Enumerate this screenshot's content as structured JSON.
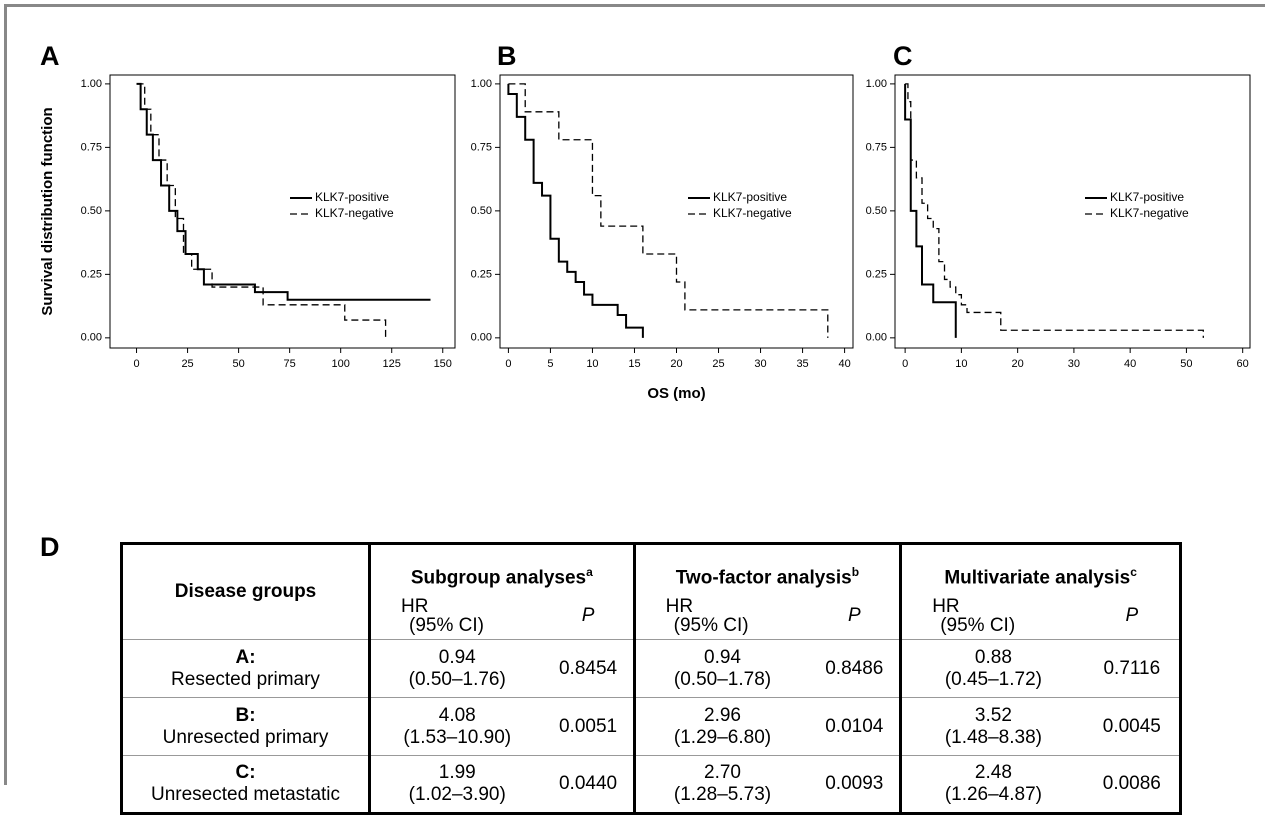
{
  "chart_data": [
    {
      "type": "step",
      "panel": "A",
      "ylabel": "Survival distribution function",
      "legend": "right",
      "xlim": [
        -13,
        156
      ],
      "xticks": [
        0,
        25,
        50,
        75,
        100,
        125,
        150
      ],
      "ylim": [
        -0.04,
        1.035
      ],
      "yticks": [
        {
          "value": 0,
          "label": "0.00"
        },
        {
          "value": 0.25,
          "label": "0.25"
        },
        {
          "value": 0.5,
          "label": "0.50"
        },
        {
          "value": 0.75,
          "label": "0.75"
        },
        {
          "value": 1,
          "label": "1.00"
        }
      ],
      "series": [
        {
          "name": "KLK7-positive",
          "color": "#000000",
          "line_style": "solid",
          "x": [
            0,
            2,
            2,
            5,
            5,
            8,
            8,
            12,
            12,
            16,
            16,
            20,
            20,
            24,
            24,
            30,
            30,
            33,
            33,
            58,
            58,
            74,
            74,
            144
          ],
          "values": [
            1,
            1,
            0.9,
            0.9,
            0.8,
            0.8,
            0.7,
            0.7,
            0.6,
            0.6,
            0.5,
            0.5,
            0.42,
            0.42,
            0.33,
            0.33,
            0.27,
            0.27,
            0.21,
            0.21,
            0.18,
            0.18,
            0.15,
            0.15
          ]
        },
        {
          "name": "KLK7-negative",
          "color": "#000000",
          "line_style": "dashed",
          "x": [
            0,
            4,
            4,
            7,
            7,
            11,
            11,
            15,
            15,
            19,
            19,
            23,
            23,
            27,
            27,
            37,
            37,
            62,
            62,
            102,
            102,
            122,
            122
          ],
          "values": [
            1,
            1,
            0.9,
            0.9,
            0.8,
            0.8,
            0.7,
            0.7,
            0.6,
            0.6,
            0.47,
            0.47,
            0.33,
            0.33,
            0.27,
            0.27,
            0.2,
            0.2,
            0.13,
            0.13,
            0.07,
            0.07,
            0
          ]
        }
      ]
    },
    {
      "type": "step",
      "panel": "B",
      "xlabel": "OS (mo)",
      "legend": "right",
      "xlim": [
        -1,
        41
      ],
      "xticks": [
        0,
        5,
        10,
        15,
        20,
        25,
        30,
        35,
        40
      ],
      "ylim": [
        -0.04,
        1.035
      ],
      "yticks": [
        {
          "value": 0,
          "label": "0.00"
        },
        {
          "value": 0.25,
          "label": "0.25"
        },
        {
          "value": 0.5,
          "label": "0.50"
        },
        {
          "value": 0.75,
          "label": "0.75"
        },
        {
          "value": 1,
          "label": "1.00"
        }
      ],
      "series": [
        {
          "name": "KLK7-positive",
          "color": "#000000",
          "line_style": "solid",
          "x": [
            0,
            0,
            1,
            1,
            2,
            2,
            3,
            3,
            4,
            4,
            5,
            5,
            6,
            6,
            7,
            7,
            8,
            8,
            9,
            9,
            10,
            10,
            13,
            13,
            14,
            14,
            16,
            16
          ],
          "values": [
            1,
            0.96,
            0.96,
            0.87,
            0.87,
            0.78,
            0.78,
            0.61,
            0.61,
            0.56,
            0.56,
            0.39,
            0.39,
            0.3,
            0.3,
            0.26,
            0.26,
            0.22,
            0.22,
            0.17,
            0.17,
            0.13,
            0.13,
            0.09,
            0.09,
            0.04,
            0.04,
            0
          ]
        },
        {
          "name": "KLK7-negative",
          "color": "#000000",
          "line_style": "dashed",
          "x": [
            0,
            2,
            2,
            6,
            6,
            10,
            10,
            11,
            11,
            16,
            16,
            20,
            20,
            21,
            21,
            38,
            38
          ],
          "values": [
            1,
            1,
            0.89,
            0.89,
            0.78,
            0.78,
            0.56,
            0.56,
            0.44,
            0.44,
            0.33,
            0.33,
            0.22,
            0.22,
            0.11,
            0.11,
            0
          ]
        }
      ]
    },
    {
      "type": "step",
      "panel": "C",
      "legend": "right",
      "xlim": [
        -1.8,
        61.3
      ],
      "xticks": [
        0,
        10,
        20,
        30,
        40,
        50,
        60
      ],
      "ylim": [
        -0.04,
        1.035
      ],
      "yticks": [
        {
          "value": 0,
          "label": "0.00"
        },
        {
          "value": 0.25,
          "label": "0.25"
        },
        {
          "value": 0.5,
          "label": "0.50"
        },
        {
          "value": 0.75,
          "label": "0.75"
        },
        {
          "value": 1,
          "label": "1.00"
        }
      ],
      "series": [
        {
          "name": "KLK7-positive",
          "color": "#000000",
          "line_style": "solid",
          "x": [
            0,
            0,
            1,
            1,
            2,
            2,
            3,
            3,
            5,
            5,
            9,
            9
          ],
          "values": [
            1,
            0.86,
            0.86,
            0.5,
            0.5,
            0.36,
            0.36,
            0.21,
            0.21,
            0.14,
            0.14,
            0
          ]
        },
        {
          "name": "KLK7-negative",
          "color": "#000000",
          "line_style": "dashed",
          "x": [
            0,
            0.5,
            0.5,
            1,
            1,
            2,
            2,
            3,
            3,
            4,
            4,
            5,
            5,
            6,
            6,
            7,
            7,
            8,
            8,
            9,
            9,
            10,
            10,
            11,
            11,
            17,
            17,
            53,
            53
          ],
          "values": [
            1,
            1,
            0.93,
            0.93,
            0.7,
            0.7,
            0.63,
            0.63,
            0.53,
            0.53,
            0.47,
            0.47,
            0.43,
            0.43,
            0.3,
            0.3,
            0.23,
            0.23,
            0.2,
            0.2,
            0.17,
            0.17,
            0.13,
            0.13,
            0.1,
            0.1,
            0.03,
            0.03,
            0
          ]
        }
      ]
    }
  ],
  "table": {
    "panel": "D",
    "row_header": "Disease groups",
    "columns": [
      {
        "title": "Subgroup analyses",
        "note": "a"
      },
      {
        "title": "Two-factor analysis",
        "note": "b"
      },
      {
        "title": "Multivariate analysis",
        "note": "c"
      }
    ],
    "hr_header": [
      "HR",
      "(95% CI)"
    ],
    "p_header": "P",
    "rows": [
      {
        "group": "A:",
        "name": "Resected primary",
        "cells": [
          [
            "0.94",
            "(0.50–1.76)",
            "0.8454"
          ],
          [
            "0.94",
            "(0.50–1.78)",
            "0.8486"
          ],
          [
            "0.88",
            "(0.45–1.72)",
            "0.7116"
          ]
        ]
      },
      {
        "group": "B:",
        "name": "Unresected primary",
        "cells": [
          [
            "4.08",
            "(1.53–10.90)",
            "0.0051"
          ],
          [
            "2.96",
            "(1.29–6.80)",
            "0.0104"
          ],
          [
            "3.52",
            "(1.48–8.38)",
            "0.0045"
          ]
        ]
      },
      {
        "group": "C:",
        "name": "Unresected metastatic",
        "cells": [
          [
            "1.99",
            "(1.02–3.90)",
            "0.0440"
          ],
          [
            "2.70",
            "(1.28–5.73)",
            "0.0093"
          ],
          [
            "2.48",
            "(1.26–4.87)",
            "0.0086"
          ]
        ]
      }
    ]
  }
}
